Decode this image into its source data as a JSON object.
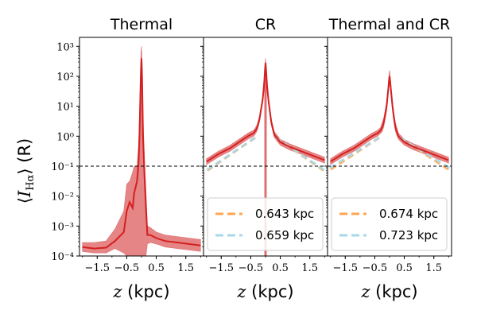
{
  "chart_data": {
    "type": "line",
    "ylabel": "⟨I_Hα⟩ (R)",
    "ylabel_parts": {
      "open": "⟨",
      "var": "I",
      "sub": "Hα",
      "close": "⟩",
      "unit": " (R)"
    },
    "xlabel_var": "z",
    "xlabel_unit": " (kpc)",
    "xlabel": "z (kpc)",
    "xlim": [
      -2.1,
      2.1
    ],
    "ylim_log10": [
      -4,
      3.3
    ],
    "x_ticks": [
      -1.5,
      -0.5,
      0.5,
      1.5
    ],
    "x_tick_labels": [
      "−1.5",
      "−0.5",
      "0.5",
      "1.5"
    ],
    "y_ticks_log10": [
      -4,
      -3,
      -2,
      -1,
      0,
      1,
      2,
      3
    ],
    "y_tick_labels": [
      "10⁻⁴",
      "10⁻³",
      "10⁻²",
      "10⁻¹",
      "10⁰",
      "10¹",
      "10²",
      "10³"
    ],
    "threshold": {
      "value": 0.1,
      "style": "dashed",
      "color": "#000000"
    },
    "colors": {
      "median": "#d42020",
      "band": "#e07070",
      "fit_orange": "#ffa550",
      "fit_blue": "#a8d8e8"
    },
    "panels": [
      {
        "title": "Thermal",
        "median": {
          "x": [
            -2.0,
            -1.6,
            -1.2,
            -0.9,
            -0.6,
            -0.5,
            -0.4,
            -0.3,
            -0.25,
            -0.2,
            -0.15,
            -0.1,
            -0.07,
            -0.04,
            -0.02,
            0.0,
            0.02,
            0.05,
            0.1,
            0.15,
            0.2,
            0.3,
            0.5,
            0.8,
            1.2,
            1.6,
            2.0
          ],
          "y_log10": [
            -3.7,
            -3.75,
            -3.72,
            -3.5,
            -3.2,
            -2.5,
            -2.2,
            -2.4,
            -1.9,
            -1.7,
            -1.5,
            -0.9,
            0.0,
            1.3,
            2.2,
            2.6,
            2.0,
            0.0,
            -1.3,
            -2.4,
            -3.3,
            -3.3,
            -3.4,
            -3.5,
            -3.55,
            -3.6,
            -3.65
          ]
        },
        "band_upper_log10": [
          -3.55,
          -3.55,
          -3.5,
          -3.1,
          -2.5,
          -1.6,
          -1.5,
          -1.2,
          -1.0,
          -1.0,
          -1.0,
          -0.3,
          0.6,
          1.8,
          2.8,
          3.0,
          2.5,
          0.6,
          -0.7,
          -1.8,
          -3.0,
          -3.05,
          -3.2,
          -3.3,
          -3.35,
          -3.4,
          -3.45
        ],
        "band_lower_log10": [
          -3.85,
          -3.9,
          -3.9,
          -3.75,
          -3.9,
          -4.0,
          -4.0,
          -4.0,
          -4.0,
          -4.0,
          -4.0,
          -4.0,
          -4.0,
          -4.0,
          -4.0,
          -4.0,
          -4.0,
          -4.0,
          -4.0,
          -4.0,
          -3.6,
          -3.55,
          -3.6,
          -3.7,
          -3.75,
          -3.8,
          -3.85
        ],
        "legend": []
      },
      {
        "title": "CR",
        "median": {
          "x": [
            -2.0,
            -1.6,
            -1.2,
            -0.9,
            -0.6,
            -0.5,
            -0.4,
            -0.3,
            -0.25,
            -0.2,
            -0.15,
            -0.1,
            -0.07,
            -0.04,
            -0.02,
            0.0,
            0.02,
            0.05,
            0.1,
            0.15,
            0.2,
            0.3,
            0.5,
            0.8,
            1.2,
            1.6,
            2.0
          ],
          "y_log10": [
            -0.85,
            -0.6,
            -0.4,
            -0.2,
            0.0,
            0.05,
            0.1,
            0.25,
            0.4,
            0.6,
            0.9,
            1.2,
            1.5,
            1.85,
            2.2,
            2.45,
            2.2,
            1.7,
            1.2,
            0.8,
            0.45,
            0.05,
            -0.2,
            -0.35,
            -0.5,
            -0.65,
            -0.8
          ]
        },
        "band_upper_log10": [
          -0.75,
          -0.5,
          -0.3,
          -0.1,
          0.1,
          0.15,
          0.2,
          0.35,
          0.5,
          0.7,
          1.0,
          1.3,
          1.6,
          1.95,
          2.35,
          2.6,
          2.35,
          1.8,
          1.3,
          0.9,
          0.55,
          0.15,
          -0.1,
          -0.25,
          -0.4,
          -0.55,
          -0.7
        ],
        "band_lower_log10": [
          -0.95,
          -0.7,
          -0.5,
          -0.3,
          -0.1,
          -0.05,
          0.0,
          0.15,
          0.3,
          0.5,
          0.8,
          1.1,
          1.4,
          1.7,
          1.9,
          2.2,
          1.9,
          1.6,
          1.1,
          0.7,
          0.35,
          -0.05,
          -0.3,
          -0.45,
          -0.6,
          -0.75,
          -0.9
        ],
        "spike": {
          "x": 0.0,
          "y_log10_top": 2.3,
          "y_log10_bottom": -4.0
        },
        "legend": [
          {
            "label": "0.643 kpc",
            "color": "#ffa550",
            "scale_height": 0.643
          },
          {
            "label": "0.659 kpc",
            "color": "#a8d8e8",
            "scale_height": 0.659
          }
        ]
      },
      {
        "title": "Thermal and CR",
        "median": {
          "x": [
            -2.0,
            -1.6,
            -1.2,
            -0.9,
            -0.6,
            -0.5,
            -0.4,
            -0.3,
            -0.25,
            -0.2,
            -0.15,
            -0.1,
            -0.07,
            -0.04,
            -0.02,
            0.0,
            0.02,
            0.05,
            0.1,
            0.15,
            0.2,
            0.3,
            0.5,
            0.8,
            1.2,
            1.6,
            2.0
          ],
          "y_log10": [
            -0.85,
            -0.6,
            -0.4,
            -0.2,
            0.0,
            0.05,
            0.1,
            0.2,
            0.3,
            0.45,
            0.7,
            1.0,
            1.3,
            1.6,
            1.85,
            2.0,
            1.85,
            1.5,
            1.0,
            0.6,
            0.3,
            0.0,
            -0.2,
            -0.35,
            -0.5,
            -0.65,
            -0.8
          ]
        },
        "band_upper_log10": [
          -0.75,
          -0.5,
          -0.3,
          -0.1,
          0.1,
          0.15,
          0.2,
          0.3,
          0.45,
          0.6,
          0.85,
          1.15,
          1.45,
          1.8,
          2.05,
          2.2,
          2.05,
          1.65,
          1.15,
          0.75,
          0.45,
          0.1,
          -0.1,
          -0.25,
          -0.4,
          -0.55,
          -0.7
        ],
        "band_lower_log10": [
          -0.95,
          -0.7,
          -0.5,
          -0.3,
          -0.1,
          -0.05,
          0.0,
          0.1,
          0.15,
          0.3,
          0.55,
          0.85,
          1.15,
          1.45,
          1.65,
          1.8,
          1.65,
          1.35,
          0.85,
          0.45,
          0.15,
          -0.1,
          -0.3,
          -0.45,
          -0.6,
          -0.75,
          -0.9
        ],
        "legend": [
          {
            "label": "0.674 kpc",
            "color": "#ffa550",
            "scale_height": 0.674
          },
          {
            "label": "0.723 kpc",
            "color": "#a8d8e8",
            "scale_height": 0.723
          }
        ]
      }
    ]
  }
}
